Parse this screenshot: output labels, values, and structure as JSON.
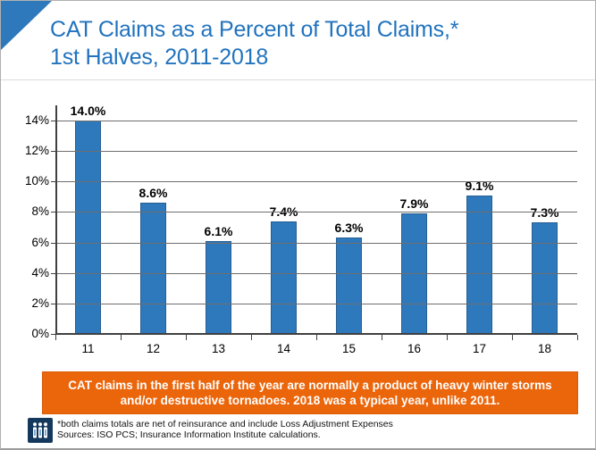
{
  "header": {
    "title_line1": "CAT Claims as a Percent of Total Claims,*",
    "title_line2": "1st Halves, 2011-2018"
  },
  "chart_data": {
    "type": "bar",
    "title": "CAT Claims as a Percent of Total Claims, 1st Halves, 2011-2018",
    "categories": [
      "11",
      "12",
      "13",
      "14",
      "15",
      "16",
      "17",
      "18"
    ],
    "values": [
      14.0,
      8.6,
      6.1,
      7.4,
      6.3,
      7.9,
      9.1,
      7.3
    ],
    "value_labels": [
      "14.0%",
      "8.6%",
      "6.1%",
      "7.4%",
      "6.3%",
      "7.9%",
      "9.1%",
      "7.3%"
    ],
    "xlabel": "",
    "ylabel": "",
    "ylim": [
      0,
      14
    ],
    "ytick_step": 2,
    "ytick_labels": [
      "0%",
      "2%",
      "4%",
      "6%",
      "8%",
      "10%",
      "12%",
      "14%"
    ],
    "grid": true,
    "legend": "none",
    "bar_color": "#2e78bc"
  },
  "callout": {
    "text": "CAT claims in the first half of the year are normally a product of heavy winter storms and/or destructive tornadoes. 2018 was a typical year, unlike 2011.",
    "bg_color": "#eb650a"
  },
  "footer": {
    "note_line1": "*both claims totals are net of reinsurance and include Loss Adjustment Expenses",
    "note_line2": "Sources: ISO PCS; Insurance Information Institute calculations.",
    "logo": "iii-logo"
  },
  "colors": {
    "title_blue": "#2173be",
    "bar_blue": "#2e78bc",
    "callout_orange": "#eb650a",
    "logo_navy": "#14395d",
    "gridline_gray": "#6e6e6e"
  }
}
